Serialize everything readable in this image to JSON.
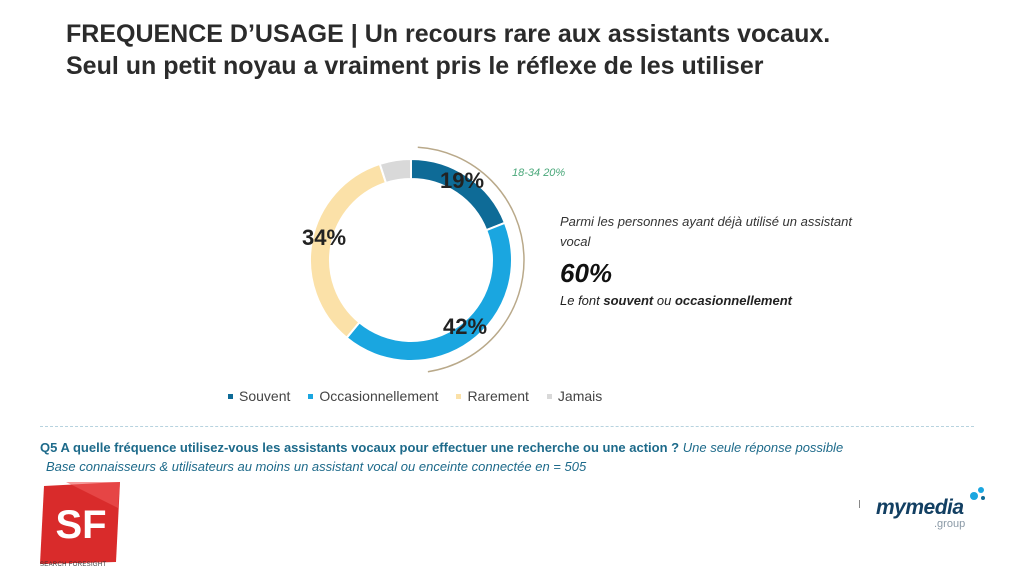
{
  "header": {
    "line1": "FREQUENCE D’USAGE | Un recours rare aux assistants vocaux.",
    "line2": "Seul un petit noyau a vraiment pris le réflexe de les utiliser"
  },
  "chart_data": {
    "type": "pie",
    "variant": "donut",
    "categories": [
      "Souvent",
      "Occasionnellement",
      "Rarement",
      "Jamais"
    ],
    "values": [
      19,
      42,
      34,
      5
    ],
    "labels": [
      "19%",
      "42%",
      "34%",
      ""
    ],
    "colors": [
      "#0e6b97",
      "#1aa6e0",
      "#fbe1a8",
      "#d9d9d9"
    ],
    "legend_position": "bottom",
    "annotation": "18-34 20%"
  },
  "side_note": {
    "text": "Parmi les personnes ayant déjà utilisé un assistant vocal",
    "percent": "60%",
    "prefix": "Le font",
    "word1": "souvent",
    "mid": "ou",
    "word2": "occasionnellement"
  },
  "question": {
    "text": "Q5 A quelle fréquence utilisez-vous les assistants vocaux pour effectuer une recherche ou une action ?",
    "hint": "Une seule réponse possible",
    "base": "Base connaisseurs & utilisateurs au moins un assistant vocal ou enceinte connectée en = 505"
  },
  "logos": {
    "sf_letters": "SF",
    "sf_caption": "SEARCH FORESIGHT",
    "mymedia_word": "mymedia",
    "mymedia_group": ".group"
  }
}
